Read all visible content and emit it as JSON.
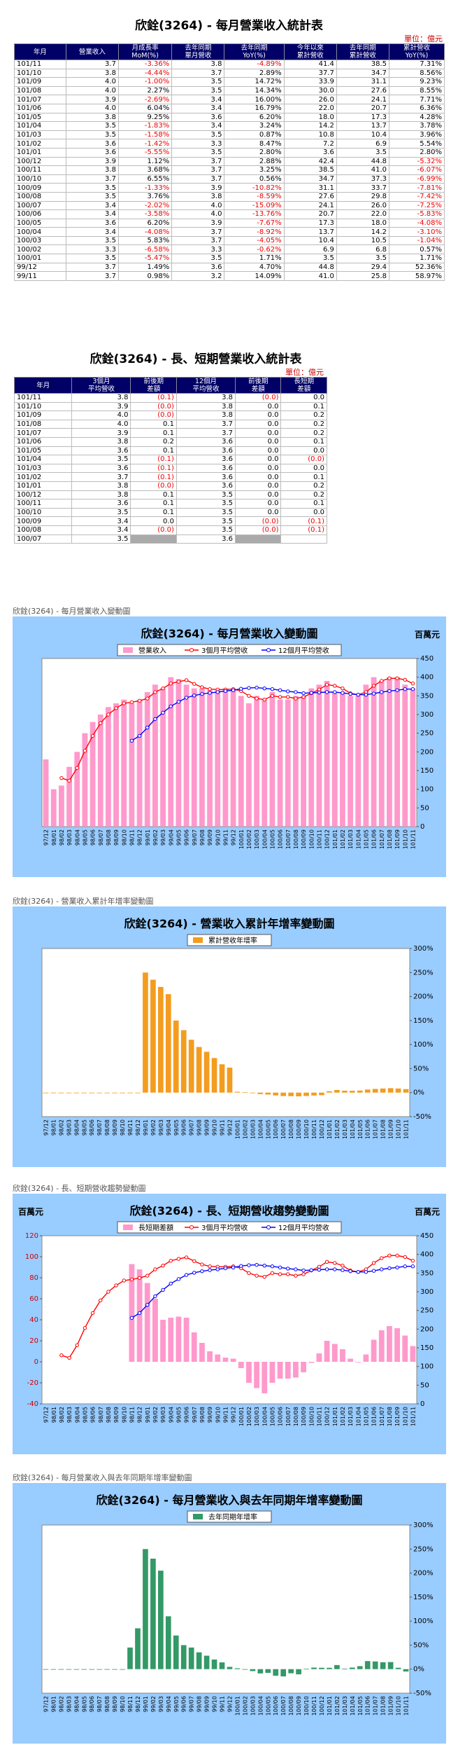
{
  "table1": {
    "title": "欣銓(3264) - 每月營業收入統計表",
    "unit": "單位：億元",
    "headers": [
      "年月",
      "營業收入",
      "月成長率\nMoM(%)",
      "去年同期\n單月營收",
      "去年同期\nYoY(%)",
      "今年以來\n累計營收",
      "去年同期\n累計營收",
      "累計營收\nYoY(%)"
    ],
    "rows": [
      [
        "101/11",
        "3.7",
        "-3.36%",
        "3.8",
        "-4.89%",
        "41.4",
        "38.5",
        "7.31%"
      ],
      [
        "101/10",
        "3.8",
        "-4.44%",
        "3.7",
        "2.89%",
        "37.7",
        "34.7",
        "8.56%"
      ],
      [
        "101/09",
        "4.0",
        "-1.00%",
        "3.5",
        "14.72%",
        "33.9",
        "31.1",
        "9.23%"
      ],
      [
        "101/08",
        "4.0",
        "2.27%",
        "3.5",
        "14.34%",
        "30.0",
        "27.6",
        "8.55%"
      ],
      [
        "101/07",
        "3.9",
        "-2.69%",
        "3.4",
        "16.00%",
        "26.0",
        "24.1",
        "7.71%"
      ],
      [
        "101/06",
        "4.0",
        "6.04%",
        "3.4",
        "16.79%",
        "22.0",
        "20.7",
        "6.36%"
      ],
      [
        "101/05",
        "3.8",
        "9.25%",
        "3.6",
        "6.20%",
        "18.0",
        "17.3",
        "4.28%"
      ],
      [
        "101/04",
        "3.5",
        "-1.83%",
        "3.4",
        "3.24%",
        "14.2",
        "13.7",
        "3.78%"
      ],
      [
        "101/03",
        "3.5",
        "-1.58%",
        "3.5",
        "0.87%",
        "10.8",
        "10.4",
        "3.96%"
      ],
      [
        "101/02",
        "3.6",
        "-1.42%",
        "3.3",
        "8.47%",
        "7.2",
        "6.9",
        "5.54%"
      ],
      [
        "101/01",
        "3.6",
        "-5.55%",
        "3.5",
        "2.80%",
        "3.6",
        "3.5",
        "2.80%"
      ],
      [
        "100/12",
        "3.9",
        "1.12%",
        "3.7",
        "2.88%",
        "42.4",
        "44.8",
        "-5.32%"
      ],
      [
        "100/11",
        "3.8",
        "3.68%",
        "3.7",
        "3.25%",
        "38.5",
        "41.0",
        "-6.07%"
      ],
      [
        "100/10",
        "3.7",
        "6.55%",
        "3.7",
        "0.56%",
        "34.7",
        "37.3",
        "-6.99%"
      ],
      [
        "100/09",
        "3.5",
        "-1.33%",
        "3.9",
        "-10.82%",
        "31.1",
        "33.7",
        "-7.81%"
      ],
      [
        "100/08",
        "3.5",
        "3.76%",
        "3.8",
        "-8.59%",
        "27.6",
        "29.8",
        "-7.42%"
      ],
      [
        "100/07",
        "3.4",
        "-2.02%",
        "4.0",
        "-15.09%",
        "24.1",
        "26.0",
        "-7.25%"
      ],
      [
        "100/06",
        "3.4",
        "-3.58%",
        "4.0",
        "-13.76%",
        "20.7",
        "22.0",
        "-5.83%"
      ],
      [
        "100/05",
        "3.6",
        "6.20%",
        "3.9",
        "-7.67%",
        "17.3",
        "18.0",
        "-4.08%"
      ],
      [
        "100/04",
        "3.4",
        "-4.08%",
        "3.7",
        "-8.92%",
        "13.7",
        "14.2",
        "-3.10%"
      ],
      [
        "100/03",
        "3.5",
        "5.83%",
        "3.7",
        "-4.05%",
        "10.4",
        "10.5",
        "-1.04%"
      ],
      [
        "100/02",
        "3.3",
        "-6.58%",
        "3.3",
        "-0.62%",
        "6.9",
        "6.8",
        "0.57%"
      ],
      [
        "100/01",
        "3.5",
        "-5.47%",
        "3.5",
        "1.71%",
        "3.5",
        "3.5",
        "1.71%"
      ],
      [
        "99/12",
        "3.7",
        "1.49%",
        "3.6",
        "4.70%",
        "44.8",
        "29.4",
        "52.36%"
      ],
      [
        "99/11",
        "3.7",
        "0.98%",
        "3.2",
        "14.09%",
        "41.0",
        "25.8",
        "58.97%"
      ]
    ]
  },
  "table2": {
    "title": "欣銓(3264) - 長、短期營業收入統計表",
    "unit": "單位：億元",
    "headers": [
      "年月",
      "3個月\n平均營收",
      "前後期\n差額",
      "12個月\n平均營收",
      "前後期\n差額",
      "長短期\n差額"
    ],
    "rows": [
      [
        "101/11",
        "3.8",
        "(0.1)",
        "3.8",
        "(0.0)",
        "0.0"
      ],
      [
        "101/10",
        "3.9",
        "(0.0)",
        "3.8",
        "0.0",
        "0.1"
      ],
      [
        "101/09",
        "4.0",
        "(0.0)",
        "3.8",
        "0.0",
        "0.2"
      ],
      [
        "101/08",
        "4.0",
        "0.1",
        "3.7",
        "0.0",
        "0.2"
      ],
      [
        "101/07",
        "3.9",
        "0.1",
        "3.7",
        "0.0",
        "0.2"
      ],
      [
        "101/06",
        "3.8",
        "0.2",
        "3.6",
        "0.0",
        "0.1"
      ],
      [
        "101/05",
        "3.6",
        "0.1",
        "3.6",
        "0.0",
        "0.0"
      ],
      [
        "101/04",
        "3.5",
        "(0.1)",
        "3.6",
        "0.0",
        "(0.0)"
      ],
      [
        "101/03",
        "3.6",
        "(0.1)",
        "3.6",
        "0.0",
        "0.0"
      ],
      [
        "101/02",
        "3.7",
        "(0.1)",
        "3.6",
        "0.0",
        "0.1"
      ],
      [
        "101/01",
        "3.8",
        "(0.0)",
        "3.6",
        "0.0",
        "0.2"
      ],
      [
        "100/12",
        "3.8",
        "0.1",
        "3.5",
        "0.0",
        "0.2"
      ],
      [
        "100/11",
        "3.6",
        "0.1",
        "3.5",
        "0.0",
        "0.1"
      ],
      [
        "100/10",
        "3.5",
        "0.1",
        "3.5",
        "0.0",
        "0.0"
      ],
      [
        "100/09",
        "3.4",
        "0.0",
        "3.5",
        "(0.0)",
        "(0.1)"
      ],
      [
        "100/08",
        "3.4",
        "(0.0)",
        "3.5",
        "(0.0)",
        "(0.1)"
      ],
      [
        "100/07",
        "3.5",
        "",
        "3.6",
        "",
        ""
      ]
    ]
  },
  "chart_data": [
    {
      "type": "bar",
      "caption": "欣銓(3264) - 每月營業收入變動圖",
      "title": "欣銓(3264) - 每月營業收入變動圖",
      "corner": "百萬元",
      "categories": [
        "97/12",
        "98/01",
        "98/02",
        "98/03",
        "98/04",
        "98/05",
        "98/06",
        "98/07",
        "98/08",
        "98/09",
        "98/10",
        "98/11",
        "98/12",
        "99/01",
        "99/02",
        "99/03",
        "99/04",
        "99/05",
        "99/06",
        "99/07",
        "99/08",
        "99/09",
        "99/10",
        "99/11",
        "99/12",
        "100/01",
        "100/02",
        "100/03",
        "100/04",
        "100/05",
        "100/06",
        "100/07",
        "100/08",
        "100/09",
        "100/10",
        "100/11",
        "100/12",
        "101/01",
        "101/02",
        "101/03",
        "101/04",
        "101/05",
        "101/06",
        "101/07",
        "101/08",
        "101/09",
        "101/10",
        "101/11"
      ],
      "series": [
        {
          "name": "營業收入",
          "kind": "bar",
          "color": "#ff99cc",
          "values": [
            180,
            100,
            110,
            160,
            200,
            250,
            280,
            300,
            320,
            330,
            340,
            330,
            340,
            360,
            380,
            370,
            400,
            395,
            380,
            370,
            370,
            365,
            365,
            370,
            370,
            350,
            330,
            350,
            340,
            360,
            340,
            340,
            350,
            350,
            370,
            380,
            390,
            360,
            360,
            350,
            350,
            380,
            400,
            390,
            400,
            400,
            380,
            370
          ]
        },
        {
          "name": "3個月平均營收",
          "kind": "line",
          "color": "#ff0000",
          "values": [
            null,
            null,
            130,
            123,
            157,
            203,
            243,
            277,
            300,
            317,
            330,
            333,
            337,
            343,
            360,
            370,
            383,
            388,
            392,
            382,
            373,
            368,
            367,
            367,
            368,
            363,
            350,
            343,
            340,
            350,
            347,
            347,
            343,
            347,
            357,
            367,
            380,
            377,
            370,
            357,
            353,
            360,
            377,
            390,
            397,
            397,
            393,
            383
          ]
        },
        {
          "name": "12個月平均營收",
          "kind": "line",
          "color": "#0000ff",
          "values": [
            null,
            null,
            null,
            null,
            null,
            null,
            null,
            null,
            null,
            null,
            null,
            230,
            243,
            265,
            288,
            305,
            322,
            334,
            345,
            351,
            355,
            358,
            360,
            363,
            365,
            369,
            371,
            372,
            370,
            368,
            365,
            362,
            360,
            357,
            358,
            359,
            360,
            360,
            358,
            355,
            353,
            353,
            356,
            360,
            363,
            365,
            368,
            368
          ]
        }
      ],
      "ylim": [
        0,
        450
      ],
      "yticks": [
        0,
        50,
        100,
        150,
        200,
        250,
        300,
        350,
        400,
        450
      ],
      "legend": "top"
    },
    {
      "type": "bar",
      "caption": "欣銓(3264) - 營業收入累計年增率變動圖",
      "title": "欣銓(3264) - 營業收入累計年增率變動圖",
      "categories": [
        "97/12",
        "98/01",
        "98/02",
        "98/03",
        "98/04",
        "98/05",
        "98/06",
        "98/07",
        "98/08",
        "98/09",
        "98/10",
        "98/11",
        "98/12",
        "99/01",
        "99/02",
        "99/03",
        "99/04",
        "99/05",
        "99/06",
        "99/07",
        "99/08",
        "99/09",
        "99/10",
        "99/11",
        "99/12",
        "100/01",
        "100/02",
        "100/03",
        "100/04",
        "100/05",
        "100/06",
        "100/07",
        "100/08",
        "100/09",
        "100/10",
        "100/11",
        "100/12",
        "101/01",
        "101/02",
        "101/03",
        "101/04",
        "101/05",
        "101/06",
        "101/07",
        "101/08",
        "101/09",
        "101/10",
        "101/11"
      ],
      "series": [
        {
          "name": "累計營收年增率",
          "kind": "bar",
          "color": "#f39c1f",
          "values": [
            0,
            0,
            0,
            0,
            0,
            0,
            0,
            0,
            0,
            0,
            0,
            0,
            0,
            250,
            235,
            220,
            205,
            150,
            130,
            110,
            95,
            85,
            72,
            59,
            52,
            1.71,
            0.57,
            -1.04,
            -3.1,
            -4.08,
            -5.83,
            -7.25,
            -7.42,
            -7.81,
            -6.99,
            -6.07,
            -5.32,
            2.8,
            5.54,
            3.96,
            3.78,
            4.28,
            6.36,
            7.71,
            8.55,
            9.23,
            8.56,
            7.31
          ]
        }
      ],
      "ylim": [
        -50,
        300
      ],
      "yticks": [
        "-50%",
        "0%",
        "50%",
        "100%",
        "150%",
        "200%",
        "250%",
        "300%"
      ],
      "legend": "top"
    },
    {
      "type": "bar",
      "caption": "欣銓(3264) - 長、短期營收趨勢變動圖",
      "title": "欣銓(3264) - 長、短期營收趨勢變動圖",
      "corner_left": "百萬元",
      "corner_right": "百萬元",
      "categories": [
        "97/12",
        "98/01",
        "98/02",
        "98/03",
        "98/04",
        "98/05",
        "98/06",
        "98/07",
        "98/08",
        "98/09",
        "98/10",
        "98/11",
        "98/12",
        "99/01",
        "99/02",
        "99/03",
        "99/04",
        "99/05",
        "99/06",
        "99/07",
        "99/08",
        "99/09",
        "99/10",
        "99/11",
        "99/12",
        "100/01",
        "100/02",
        "100/03",
        "100/04",
        "100/05",
        "100/06",
        "100/07",
        "100/08",
        "100/09",
        "100/10",
        "100/11",
        "100/12",
        "101/01",
        "101/02",
        "101/03",
        "101/04",
        "101/05",
        "101/06",
        "101/07",
        "101/08",
        "101/09",
        "101/10",
        "101/11"
      ],
      "series": [
        {
          "name": "長短期差額",
          "kind": "bar",
          "color": "#ff99cc",
          "axis": "left",
          "values": [
            null,
            null,
            null,
            null,
            null,
            null,
            null,
            null,
            null,
            null,
            null,
            93,
            88,
            75,
            60,
            40,
            42,
            43,
            42,
            28,
            18,
            10,
            7,
            4,
            3,
            -6,
            -20,
            -25,
            -30,
            -20,
            -16,
            -16,
            -15,
            -10,
            -1,
            8,
            20,
            17,
            12,
            3,
            0,
            7,
            21,
            30,
            34,
            32,
            25,
            15
          ]
        },
        {
          "name": "3個月平均營收",
          "kind": "line",
          "color": "#ff0000",
          "axis": "right",
          "values": [
            null,
            null,
            130,
            123,
            157,
            203,
            243,
            277,
            300,
            317,
            330,
            333,
            337,
            343,
            360,
            370,
            383,
            388,
            392,
            382,
            373,
            368,
            367,
            367,
            368,
            363,
            350,
            343,
            340,
            350,
            347,
            347,
            343,
            347,
            357,
            367,
            380,
            377,
            370,
            357,
            353,
            360,
            377,
            390,
            397,
            397,
            393,
            383
          ]
        },
        {
          "name": "12個月平均營收",
          "kind": "line",
          "color": "#0000ff",
          "axis": "right",
          "values": [
            null,
            null,
            null,
            null,
            null,
            null,
            null,
            null,
            null,
            null,
            null,
            230,
            243,
            265,
            288,
            305,
            322,
            334,
            345,
            351,
            355,
            358,
            360,
            363,
            365,
            369,
            371,
            372,
            370,
            368,
            365,
            362,
            360,
            357,
            358,
            359,
            360,
            360,
            358,
            355,
            353,
            353,
            356,
            360,
            363,
            365,
            368,
            368
          ]
        }
      ],
      "ylim_left": [
        -40,
        120
      ],
      "yticks_left": [
        -40,
        -20,
        0,
        20,
        40,
        60,
        80,
        100,
        120
      ],
      "ylim_right": [
        0,
        450
      ],
      "yticks_right": [
        0,
        50,
        100,
        150,
        200,
        250,
        300,
        350,
        400,
        450
      ],
      "legend": "top"
    },
    {
      "type": "bar",
      "caption": "欣銓(3264) - 每月營業收入與去年同期年增率變動圖",
      "title": "欣銓(3264) - 每月營業收入與去年同期年增率變動圖",
      "categories": [
        "97/12",
        "98/01",
        "98/02",
        "98/03",
        "98/04",
        "98/05",
        "98/06",
        "98/07",
        "98/08",
        "98/09",
        "98/10",
        "98/11",
        "98/12",
        "99/01",
        "99/02",
        "99/03",
        "99/04",
        "99/05",
        "99/06",
        "99/07",
        "99/08",
        "99/09",
        "99/10",
        "99/11",
        "99/12",
        "100/01",
        "100/02",
        "100/03",
        "100/04",
        "100/05",
        "100/06",
        "100/07",
        "100/08",
        "100/09",
        "100/10",
        "100/11",
        "100/12",
        "101/01",
        "101/02",
        "101/03",
        "101/04",
        "101/05",
        "101/06",
        "101/07",
        "101/08",
        "101/09",
        "101/10",
        "101/11"
      ],
      "series": [
        {
          "name": "去年同期年增率",
          "kind": "bar",
          "color": "#339966",
          "values": [
            0,
            0,
            0,
            0,
            0,
            0,
            0,
            0,
            0,
            0,
            0,
            45,
            85,
            250,
            230,
            205,
            110,
            70,
            50,
            45,
            35,
            28,
            20,
            14.09,
            4.7,
            1.71,
            -0.62,
            -4.05,
            -8.92,
            -7.67,
            -13.76,
            -15.09,
            -8.59,
            -10.82,
            0.56,
            3.25,
            2.88,
            2.8,
            8.47,
            0.87,
            3.24,
            6.2,
            16.79,
            16.0,
            14.34,
            14.72,
            2.89,
            -4.89
          ]
        }
      ],
      "ylim": [
        -50,
        300
      ],
      "yticks": [
        "-50%",
        "0%",
        "50%",
        "100%",
        "150%",
        "200%",
        "250%",
        "300%"
      ],
      "legend": "top"
    }
  ]
}
